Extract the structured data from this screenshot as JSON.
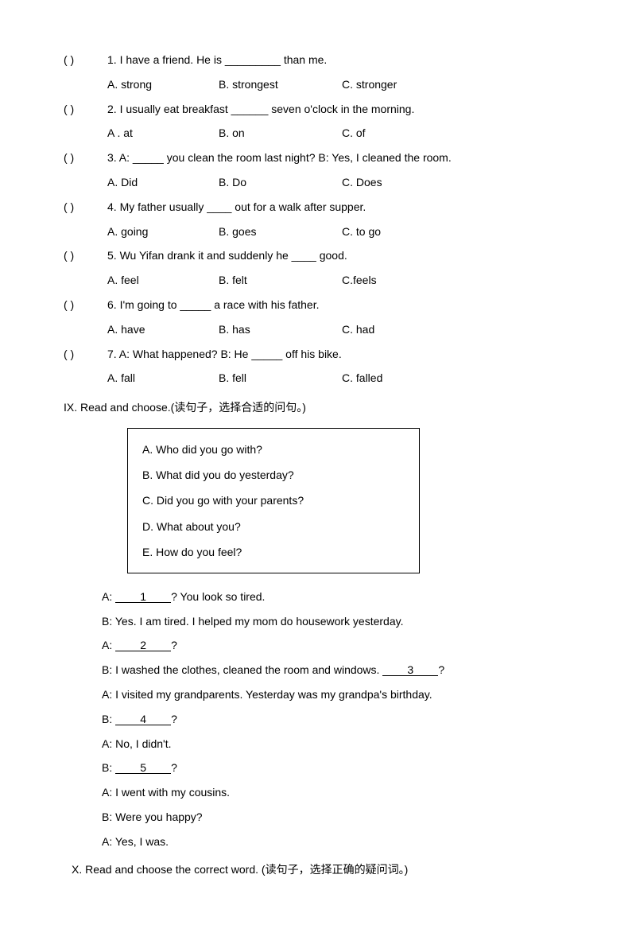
{
  "mc": {
    "paren": "(       )",
    "q1": {
      "text": "1. I have a friend. He is _________ than me.",
      "a": "A. strong",
      "b": "B. strongest",
      "c": "C. stronger"
    },
    "q2": {
      "text": "2. I usually eat breakfast ______ seven o'clock in the morning.",
      "a": "A . at",
      "b": "B. on",
      "c": "C. of"
    },
    "q3": {
      "text": "3. A: _____ you clean the room last night?     B: Yes, I cleaned the room.",
      "a": "A. Did",
      "b": "B. Do",
      "c": "C. Does"
    },
    "q4": {
      "text": "4. My father usually ____ out for a walk after supper.",
      "a": "A. going",
      "b": "B. goes",
      "c": "C. to go"
    },
    "q5": {
      "text": "5. Wu Yifan drank it and suddenly he ____ good.",
      "a": "A. feel",
      "b": "B. felt",
      "c": "C.feels"
    },
    "q6": {
      "text": "6. I'm going to _____ a race with his father.",
      "a": "A. have",
      "b": "B. has",
      "c": "C. had"
    },
    "q7": {
      "text": "7. A: What happened?                         B: He _____ off his bike.",
      "a": "A. fall",
      "b": "B. fell",
      "c": "C. falled"
    }
  },
  "sectionIX": "IX. Read and choose.(读句子，选择合适的问句。)",
  "box": {
    "a": "A. Who did you go with?",
    "b": "B. What did you do yesterday?",
    "c": "C. Did you go with your parents?",
    "d": "D. What about you?",
    "e": "E. How do you feel?"
  },
  "dialog": {
    "l1a": "A: ",
    "l1_blank": "     1     ",
    "l1b": "? You look so tired.",
    "l2": "B: Yes. I am tired. I helped my mom do housework yesterday.",
    "l3a": "A: ",
    "l3_blank": "     2     ",
    "l3b": "?",
    "l4a": "B: I washed the clothes, cleaned the room and windows. ",
    "l4_blank": "     3     ",
    "l4b": "?",
    "l5": "A: I visited my grandparents. Yesterday was my grandpa's birthday.",
    "l6a": "B: ",
    "l6_blank": "    4      ",
    "l6b": "?",
    "l7": "A: No, I didn't.",
    "l8a": "B: ",
    "l8_blank": "      5    ",
    "l8b": "?",
    "l9": "A: I went with my cousins.",
    "l10": "B: Were you happy?",
    "l11": "A: Yes, I was."
  },
  "sectionX": "X.   Read and choose the correct word. (读句子，选择正确的疑问词。)"
}
